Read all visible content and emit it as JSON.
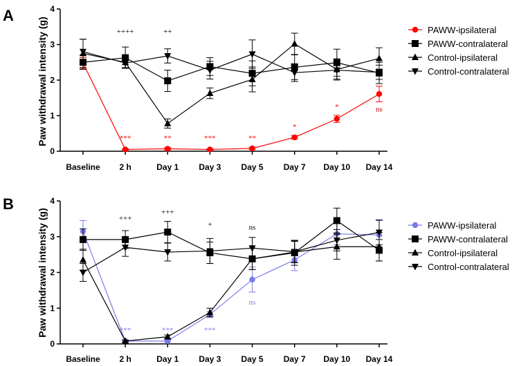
{
  "chart_data": [
    {
      "panel": "A",
      "type": "line",
      "ylabel": "Paw withdrawal intensity (g)",
      "ylim": [
        0,
        4
      ],
      "yticks": [
        "0",
        "1",
        "2",
        "3",
        "4"
      ],
      "categories": [
        "Baseline",
        "2 h",
        "Day 1",
        "Day 3",
        "Day 5",
        "Day 7",
        "Day 10",
        "Day 14"
      ],
      "legend_position": "right",
      "series": [
        {
          "name": "PAWW-ipsilateral",
          "marker": "circle",
          "color": "#ff0000",
          "values": [
            2.48,
            0.05,
            0.07,
            0.05,
            0.08,
            0.39,
            0.91,
            1.61
          ],
          "errors": [
            0.15,
            0.02,
            0.03,
            0.02,
            0.03,
            0.05,
            0.1,
            0.22
          ]
        },
        {
          "name": "PAWW-contralateral",
          "marker": "square",
          "color": "#000000",
          "values": [
            2.5,
            2.63,
            1.98,
            2.38,
            2.19,
            2.36,
            2.49,
            2.2
          ],
          "errors": [
            0.2,
            0.3,
            0.3,
            0.25,
            0.35,
            0.35,
            0.38,
            0.3
          ]
        },
        {
          "name": "Control-ipsilateral",
          "marker": "triangle-up",
          "color": "#000000",
          "values": [
            2.75,
            2.5,
            0.78,
            1.63,
            2.02,
            3.02,
            2.3,
            2.61
          ],
          "errors": [
            0.4,
            0.15,
            0.13,
            0.15,
            0.35,
            0.3,
            0.3,
            0.3
          ]
        },
        {
          "name": "Control-contralateral",
          "marker": "triangle-down",
          "color": "#000000",
          "values": [
            2.8,
            2.48,
            2.68,
            2.28,
            2.73,
            2.21,
            2.28,
            2.22
          ],
          "errors": [
            0.35,
            0.15,
            0.2,
            0.25,
            0.4,
            0.25,
            0.25,
            0.2
          ]
        }
      ],
      "annotations": [
        {
          "text": "++++",
          "x": "2 h",
          "y": 3.3,
          "color": "#000000"
        },
        {
          "text": "++",
          "x": "Day 1",
          "y": 3.3,
          "color": "#000000"
        },
        {
          "text": "***",
          "x": "2 h",
          "y": 0.3,
          "color": "#ff0000"
        },
        {
          "text": "**",
          "x": "Day 1",
          "y": 0.3,
          "color": "#ff0000"
        },
        {
          "text": "***",
          "x": "Day 3",
          "y": 0.3,
          "color": "#ff0000"
        },
        {
          "text": "**",
          "x": "Day 5",
          "y": 0.3,
          "color": "#ff0000"
        },
        {
          "text": "*",
          "x": "Day 7",
          "y": 0.62,
          "color": "#ff0000"
        },
        {
          "text": "*",
          "x": "Day 10",
          "y": 1.18,
          "color": "#ff0000"
        },
        {
          "text": "ns",
          "x": "Day 14",
          "y": 1.12,
          "color": "#cc0000"
        }
      ]
    },
    {
      "panel": "B",
      "type": "line",
      "ylabel": "Paw withdrawal intensity (g)",
      "ylim": [
        0,
        4
      ],
      "yticks": [
        "0",
        "1",
        "2",
        "3",
        "4"
      ],
      "categories": [
        "Baseline",
        "2 h",
        "Day 1",
        "Day 3",
        "Day 5",
        "Day 7",
        "Day 10",
        "Day 14"
      ],
      "legend_position": "right",
      "series": [
        {
          "name": "PAWW-ipsilateral",
          "marker": "circle",
          "color": "#7b7bea",
          "values": [
            3.15,
            0.08,
            0.08,
            0.82,
            1.8,
            2.35,
            3.08,
            3.05
          ],
          "errors": [
            0.3,
            0.02,
            0.03,
            0.08,
            0.35,
            0.3,
            0.3,
            0.4
          ]
        },
        {
          "name": "PAWW-contralateral",
          "marker": "square",
          "color": "#000000",
          "values": [
            2.92,
            2.92,
            3.13,
            2.55,
            2.38,
            2.55,
            3.45,
            2.62
          ],
          "errors": [
            0.3,
            0.25,
            0.3,
            0.3,
            0.3,
            0.35,
            0.35,
            0.3
          ]
        },
        {
          "name": "Control-ipsilateral",
          "marker": "triangle-up",
          "color": "#000000",
          "values": [
            2.35,
            0.08,
            0.2,
            0.88,
            2.38,
            2.57,
            2.72,
            2.72
          ],
          "errors": [
            0.3,
            0.03,
            0.05,
            0.12,
            0.3,
            0.3,
            0.35,
            0.4
          ]
        },
        {
          "name": "Control-contralateral",
          "marker": "triangle-down",
          "color": "#000000",
          "values": [
            2.0,
            2.7,
            2.57,
            2.6,
            2.68,
            2.58,
            2.9,
            3.12
          ],
          "errors": [
            0.25,
            0.25,
            0.25,
            0.35,
            0.3,
            0.3,
            0.3,
            0.35
          ]
        }
      ],
      "annotations": [
        {
          "text": "+++",
          "x": "2 h",
          "y": 3.45,
          "color": "#000000"
        },
        {
          "text": "+++",
          "x": "Day 1",
          "y": 3.62,
          "color": "#000000"
        },
        {
          "text": "+",
          "x": "Day 3",
          "y": 3.28,
          "color": "#000000"
        },
        {
          "text": "ns",
          "x": "Day 5",
          "y": 3.2,
          "color": "#000000"
        },
        {
          "text": "***",
          "x": "2 h",
          "y": 0.32,
          "color": "#7b7bea"
        },
        {
          "text": "***",
          "x": "Day 1",
          "y": 0.32,
          "color": "#7b7bea"
        },
        {
          "text": "***",
          "x": "Day 3",
          "y": 0.32,
          "color": "#7b7bea"
        },
        {
          "text": "ns",
          "x": "Day 5",
          "y": 1.1,
          "color": "#7b7bea"
        }
      ]
    }
  ]
}
